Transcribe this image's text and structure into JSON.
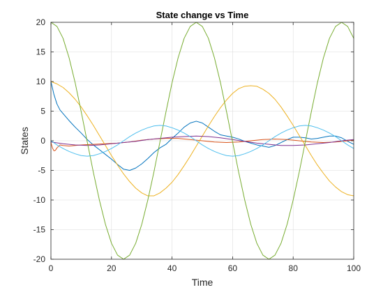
{
  "chart_data": {
    "type": "line",
    "title": "State change vs Time",
    "xlabel": "Time",
    "ylabel": "States",
    "xlim": [
      0,
      100
    ],
    "ylim": [
      -20,
      20
    ],
    "xticks": [
      0,
      20,
      40,
      60,
      80,
      100
    ],
    "yticks": [
      -20,
      -15,
      -10,
      -5,
      0,
      5,
      10,
      15,
      20
    ],
    "xtick_labels": [
      "0",
      "20",
      "40",
      "60",
      "80",
      "100"
    ],
    "ytick_labels": [
      "-20",
      "-15",
      "-10",
      "-5",
      "0",
      "5",
      "10",
      "15",
      "20"
    ],
    "grid": true,
    "legend": "none",
    "series": [
      {
        "color": "#0072BD",
        "x": [
          0,
          1,
          2,
          3,
          4,
          6,
          8,
          10,
          12,
          14,
          16,
          18,
          20,
          22,
          24,
          26,
          28,
          30,
          32,
          34,
          36,
          38,
          40,
          42,
          44,
          46,
          48,
          50,
          52,
          54,
          56,
          58,
          60,
          62,
          64,
          66,
          68,
          70,
          72,
          74,
          76,
          78,
          80,
          82,
          84,
          86,
          88,
          90,
          92,
          94,
          96,
          98,
          100
        ],
        "y": [
          10,
          7.8,
          6.2,
          5.2,
          4.6,
          3.4,
          2.3,
          1.3,
          0.2,
          -0.7,
          -1.5,
          -2.3,
          -3.1,
          -4.0,
          -4.8,
          -5.0,
          -4.6,
          -3.9,
          -3.0,
          -2.0,
          -1.2,
          -0.6,
          0.4,
          1.3,
          2.3,
          3.0,
          3.3,
          3.0,
          2.3,
          1.6,
          1.0,
          0.8,
          0.6,
          0.3,
          -0.1,
          -0.4,
          -0.7,
          -0.9,
          -1.1,
          -0.8,
          -0.3,
          0.2,
          0.6,
          0.6,
          0.5,
          0.3,
          0.4,
          0.6,
          0.8,
          0.8,
          0.5,
          -0.1,
          -0.6
        ]
      },
      {
        "color": "#D95319",
        "x": [
          0,
          0.5,
          1,
          1.5,
          2,
          3,
          4,
          6,
          8,
          10,
          14,
          18,
          22,
          26,
          30,
          34,
          38,
          42,
          46,
          50,
          54,
          58,
          62,
          66,
          70,
          74,
          78,
          82,
          86,
          90,
          94,
          98,
          100
        ],
        "y": [
          -0.3,
          -1.2,
          -1.7,
          -1.6,
          -1.2,
          -0.7,
          -0.8,
          -0.9,
          -0.8,
          -0.7,
          -0.6,
          -0.5,
          -0.4,
          -0.2,
          0.1,
          0.3,
          0.4,
          0.4,
          0.2,
          0.0,
          -0.2,
          -0.3,
          -0.2,
          0.0,
          0.2,
          0.3,
          0.2,
          0.0,
          -0.2,
          -0.3,
          -0.2,
          0.0,
          0.1
        ]
      },
      {
        "color": "#EDB120",
        "x": [
          0,
          2,
          4,
          6,
          8,
          10,
          12,
          14,
          16,
          18,
          20,
          22,
          24,
          26,
          28,
          30,
          32,
          34,
          36,
          38,
          40,
          42,
          44,
          46,
          48,
          50,
          52,
          54,
          56,
          58,
          60,
          62,
          64,
          66,
          68,
          70,
          72,
          74,
          76,
          78,
          80,
          82,
          84,
          86,
          88,
          90,
          92,
          94,
          96,
          98,
          100
        ],
        "y": [
          10,
          9.6,
          9.0,
          8.1,
          7.0,
          5.7,
          4.2,
          2.6,
          0.9,
          -0.8,
          -2.5,
          -4.1,
          -5.6,
          -6.9,
          -8.0,
          -8.8,
          -9.3,
          -9.3,
          -8.8,
          -8.0,
          -7.0,
          -5.7,
          -4.2,
          -2.6,
          -0.9,
          0.8,
          2.5,
          4.1,
          5.6,
          6.9,
          8.0,
          8.8,
          9.2,
          9.3,
          9.2,
          8.7,
          8.0,
          7.0,
          5.7,
          4.2,
          2.6,
          0.9,
          -0.8,
          -2.5,
          -4.1,
          -5.5,
          -6.8,
          -7.8,
          -8.6,
          -9.1,
          -9.3
        ]
      },
      {
        "color": "#7E2F8E",
        "x": [
          0,
          4,
          8,
          12,
          16,
          20,
          24,
          28,
          32,
          36,
          40,
          44,
          48,
          52,
          56,
          60,
          64,
          68,
          72,
          76,
          80,
          84,
          88,
          92,
          96,
          100
        ],
        "y": [
          -0.2,
          -0.5,
          -0.7,
          -0.8,
          -0.7,
          -0.5,
          -0.3,
          -0.1,
          0.2,
          0.4,
          0.6,
          0.7,
          0.8,
          0.7,
          0.5,
          0.2,
          -0.1,
          -0.4,
          -0.6,
          -0.8,
          -0.8,
          -0.7,
          -0.5,
          -0.3,
          0.0,
          0.2
        ]
      },
      {
        "color": "#77AC30",
        "x": [
          0,
          2,
          4,
          6,
          8,
          10,
          12,
          14,
          16,
          18,
          20,
          22,
          24,
          26,
          28,
          30,
          32,
          34,
          36,
          38,
          40,
          42,
          44,
          46,
          48,
          50,
          52,
          54,
          56,
          58,
          60,
          62,
          64,
          66,
          68,
          70,
          72,
          74,
          76,
          78,
          80,
          82,
          84,
          86,
          88,
          90,
          92,
          94,
          96,
          98,
          100
        ],
        "y": [
          20,
          19.3,
          17.3,
          14.0,
          9.8,
          4.9,
          -0.2,
          -5.3,
          -10.0,
          -14.1,
          -17.3,
          -19.3,
          -20.0,
          -19.3,
          -17.3,
          -14.1,
          -10.0,
          -5.3,
          -0.2,
          4.9,
          9.8,
          14.0,
          17.3,
          19.3,
          20.0,
          19.3,
          17.3,
          14.0,
          9.8,
          4.9,
          -0.2,
          -5.3,
          -10.0,
          -14.1,
          -17.3,
          -19.3,
          -20.0,
          -19.3,
          -17.3,
          -14.1,
          -10.0,
          -5.3,
          -0.2,
          4.9,
          9.8,
          14.0,
          17.3,
          19.3,
          20.0,
          19.3,
          17.3
        ]
      },
      {
        "color": "#4DBEEE",
        "x": [
          0,
          2,
          4,
          6,
          8,
          10,
          12,
          14,
          16,
          18,
          20,
          22,
          24,
          26,
          28,
          30,
          32,
          34,
          36,
          38,
          40,
          42,
          44,
          46,
          48,
          50,
          52,
          54,
          56,
          58,
          60,
          62,
          64,
          66,
          68,
          70,
          72,
          74,
          76,
          78,
          80,
          82,
          84,
          86,
          88,
          90,
          92,
          94,
          96,
          98,
          100
        ],
        "y": [
          0,
          -0.7,
          -1.3,
          -1.8,
          -2.2,
          -2.5,
          -2.6,
          -2.5,
          -2.2,
          -1.8,
          -1.3,
          -0.7,
          0,
          0.7,
          1.3,
          1.8,
          2.2,
          2.5,
          2.6,
          2.5,
          2.2,
          1.8,
          1.3,
          0.7,
          0,
          -0.7,
          -1.3,
          -1.8,
          -2.2,
          -2.5,
          -2.6,
          -2.5,
          -2.2,
          -1.8,
          -1.3,
          -0.7,
          0,
          0.7,
          1.3,
          1.8,
          2.2,
          2.5,
          2.6,
          2.5,
          2.2,
          1.8,
          1.3,
          0.7,
          0,
          -0.7,
          -1.3
        ]
      }
    ]
  }
}
